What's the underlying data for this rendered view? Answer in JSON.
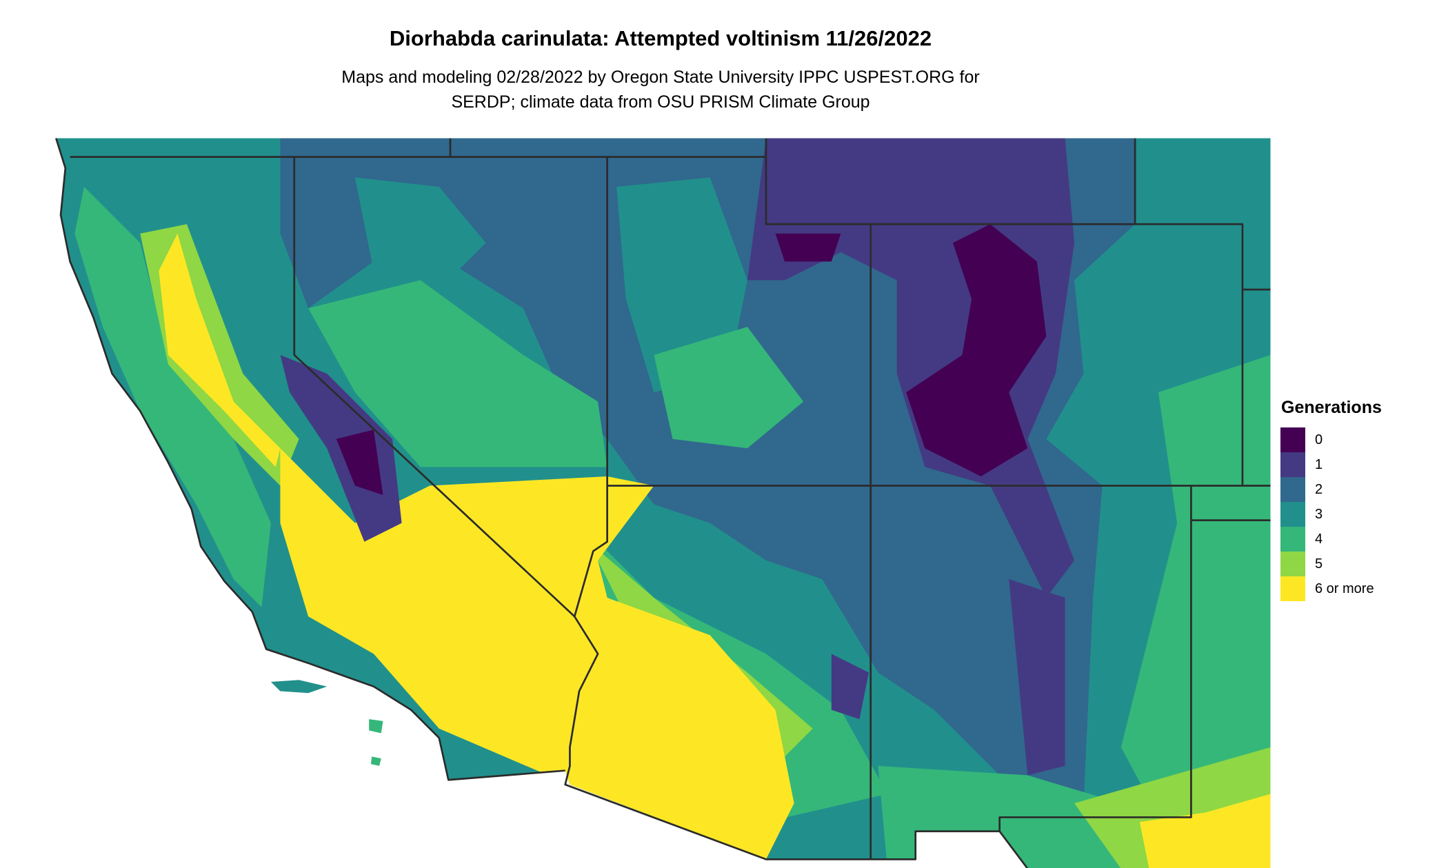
{
  "title": "Diorhabda carinulata: Attempted voltinism 11/26/2022",
  "subtitle_lines": [
    "Maps and modeling 02/28/2022 by Oregon State University IPPC USPEST.ORG for",
    "SERDP; climate data from OSU PRISM Climate Group"
  ],
  "legend": {
    "title": "Generations",
    "items": [
      {
        "label": "0",
        "color": "#440154"
      },
      {
        "label": "1",
        "color": "#443A83"
      },
      {
        "label": "2",
        "color": "#31688E"
      },
      {
        "label": "3",
        "color": "#21908C"
      },
      {
        "label": "4",
        "color": "#35B779"
      },
      {
        "label": "5",
        "color": "#8FD744"
      },
      {
        "label": "6 or more",
        "color": "#FDE725"
      }
    ]
  }
}
